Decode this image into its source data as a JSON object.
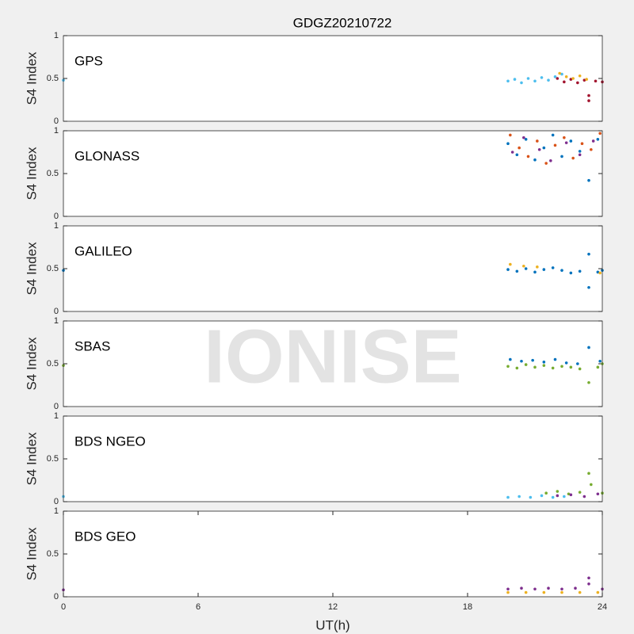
{
  "title": "GDGZ20210722",
  "watermark": "IONISE",
  "chart_data": [
    {
      "type": "scatter",
      "label": "GPS",
      "ylabel": "S4 Index",
      "xlim": [
        0,
        24
      ],
      "ylim": [
        0,
        1
      ],
      "yticks": [
        0,
        0.5,
        1
      ],
      "series": [
        {
          "color": "#4DBEEE",
          "x": [
            0,
            19.8,
            20.1,
            20.4,
            20.7,
            21.0,
            21.3,
            21.6,
            21.9,
            22.2
          ],
          "values": [
            0.48,
            0.47,
            0.49,
            0.45,
            0.5,
            0.47,
            0.51,
            0.48,
            0.52,
            0.55
          ]
        },
        {
          "color": "#A2142F",
          "x": [
            22.0,
            22.3,
            22.6,
            22.9,
            23.2,
            23.4,
            23.4,
            23.7,
            24.0
          ],
          "values": [
            0.5,
            0.46,
            0.49,
            0.45,
            0.48,
            0.3,
            0.24,
            0.47,
            0.46
          ]
        },
        {
          "color": "#EDB120",
          "x": [
            22.1,
            22.4,
            22.7,
            23.0,
            23.3
          ],
          "values": [
            0.56,
            0.52,
            0.5,
            0.53,
            0.49
          ]
        }
      ]
    },
    {
      "type": "scatter",
      "label": "GLONASS",
      "ylabel": "S4 Index",
      "xlim": [
        0,
        24
      ],
      "ylim": [
        0,
        1
      ],
      "yticks": [
        0,
        0.5,
        1
      ],
      "series": [
        {
          "color": "#0072BD",
          "x": [
            19.8,
            20.2,
            20.6,
            21.0,
            21.4,
            21.8,
            22.2,
            22.6,
            23.0,
            23.4,
            23.8
          ],
          "values": [
            0.85,
            0.72,
            0.9,
            0.66,
            0.8,
            0.95,
            0.7,
            0.88,
            0.76,
            0.42,
            0.9
          ]
        },
        {
          "color": "#D95319",
          "x": [
            19.9,
            20.3,
            20.7,
            21.1,
            21.5,
            21.9,
            22.3,
            22.7,
            23.1,
            23.5,
            23.9
          ],
          "values": [
            0.95,
            0.8,
            0.7,
            0.88,
            0.62,
            0.83,
            0.92,
            0.68,
            0.85,
            0.78,
            0.97
          ]
        },
        {
          "color": "#7E2F8E",
          "x": [
            20.0,
            20.5,
            21.2,
            21.7,
            22.4,
            23.0,
            23.6
          ],
          "values": [
            0.75,
            0.92,
            0.78,
            0.65,
            0.86,
            0.72,
            0.88
          ]
        }
      ]
    },
    {
      "type": "scatter",
      "label": "GALILEO",
      "ylabel": "S4 Index",
      "xlim": [
        0,
        24
      ],
      "ylim": [
        0,
        1
      ],
      "yticks": [
        0,
        0.5,
        1
      ],
      "series": [
        {
          "color": "#0072BD",
          "x": [
            0,
            19.8,
            20.2,
            20.6,
            21.0,
            21.4,
            21.8,
            22.2,
            22.6,
            23.0,
            23.4,
            23.4,
            23.8,
            24.0
          ],
          "values": [
            0.48,
            0.49,
            0.47,
            0.5,
            0.46,
            0.49,
            0.51,
            0.48,
            0.45,
            0.47,
            0.67,
            0.28,
            0.46,
            0.48
          ]
        },
        {
          "color": "#EDB120",
          "x": [
            19.9,
            20.5,
            21.1,
            23.9
          ],
          "values": [
            0.55,
            0.53,
            0.52,
            0.45
          ]
        }
      ]
    },
    {
      "type": "scatter",
      "label": "SBAS",
      "ylabel": "S4 Index",
      "xlim": [
        0,
        24
      ],
      "ylim": [
        0,
        1
      ],
      "yticks": [
        0,
        0.5,
        1
      ],
      "series": [
        {
          "color": "#77AC30",
          "x": [
            0,
            19.8,
            20.2,
            20.6,
            21.0,
            21.4,
            21.8,
            22.2,
            22.6,
            23.0,
            23.4,
            23.8,
            24.0
          ],
          "values": [
            0.48,
            0.47,
            0.45,
            0.49,
            0.46,
            0.48,
            0.45,
            0.47,
            0.46,
            0.44,
            0.28,
            0.46,
            0.5
          ]
        },
        {
          "color": "#0072BD",
          "x": [
            19.9,
            20.4,
            20.9,
            21.4,
            21.9,
            22.4,
            22.9,
            23.4,
            23.9
          ],
          "values": [
            0.55,
            0.53,
            0.54,
            0.52,
            0.55,
            0.51,
            0.5,
            0.69,
            0.53
          ]
        }
      ]
    },
    {
      "type": "scatter",
      "label": "BDS NGEO",
      "ylabel": "S4 Index",
      "xlim": [
        0,
        24
      ],
      "ylim": [
        0,
        1
      ],
      "yticks": [
        0,
        0.5,
        1
      ],
      "series": [
        {
          "color": "#4DBEEE",
          "x": [
            0,
            19.8,
            20.3,
            20.8,
            21.3,
            21.8,
            22.3
          ],
          "values": [
            0.06,
            0.05,
            0.06,
            0.05,
            0.07,
            0.05,
            0.06
          ]
        },
        {
          "color": "#77AC30",
          "x": [
            21.5,
            22.0,
            22.5,
            23.0,
            23.4,
            23.5,
            24.0
          ],
          "values": [
            0.1,
            0.12,
            0.09,
            0.11,
            0.33,
            0.2,
            0.1
          ]
        },
        {
          "color": "#7E2F8E",
          "x": [
            22.0,
            22.6,
            23.2,
            23.8
          ],
          "values": [
            0.07,
            0.08,
            0.06,
            0.09
          ]
        }
      ]
    },
    {
      "type": "scatter",
      "label": "BDS GEO",
      "ylabel": "S4 Index",
      "xlabel": "UT(h)",
      "xlim": [
        0,
        24
      ],
      "xticks": [
        0,
        6,
        12,
        18,
        24
      ],
      "ylim": [
        0,
        1
      ],
      "yticks": [
        0,
        0.5,
        1
      ],
      "series": [
        {
          "color": "#7E2F8E",
          "x": [
            0,
            19.8,
            20.4,
            21.0,
            21.6,
            22.2,
            22.8,
            23.4,
            23.4,
            24.0
          ],
          "values": [
            0.08,
            0.09,
            0.1,
            0.09,
            0.1,
            0.09,
            0.1,
            0.22,
            0.15,
            0.09
          ]
        },
        {
          "color": "#EDB120",
          "x": [
            19.8,
            20.6,
            21.4,
            22.2,
            23.0,
            23.8
          ],
          "values": [
            0.05,
            0.05,
            0.05,
            0.05,
            0.05,
            0.05
          ]
        }
      ]
    }
  ]
}
